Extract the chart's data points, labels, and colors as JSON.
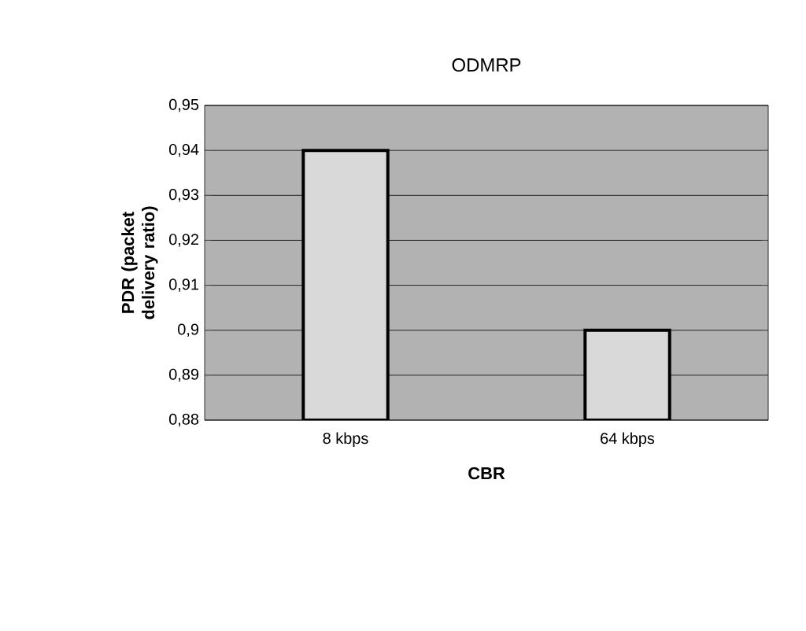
{
  "chart_data": {
    "type": "bar",
    "title": "ODMRP",
    "xlabel": "CBR",
    "ylabel": "PDR (packet delivery ratio)",
    "categories": [
      "8 kbps",
      "64 kbps"
    ],
    "values": [
      0.94,
      0.9
    ],
    "color": "#d9d9d9",
    "ylim": [
      0.88,
      0.95
    ],
    "yticks": [
      {
        "value": 0.88,
        "label": "0,88"
      },
      {
        "value": 0.89,
        "label": "0,89"
      },
      {
        "value": 0.9,
        "label": "0,9"
      },
      {
        "value": 0.91,
        "label": "0,91"
      },
      {
        "value": 0.92,
        "label": "0,92"
      },
      {
        "value": 0.93,
        "label": "0,93"
      },
      {
        "value": 0.94,
        "label": "0,94"
      },
      {
        "value": 0.95,
        "label": "0,95"
      }
    ],
    "grid": "y"
  }
}
